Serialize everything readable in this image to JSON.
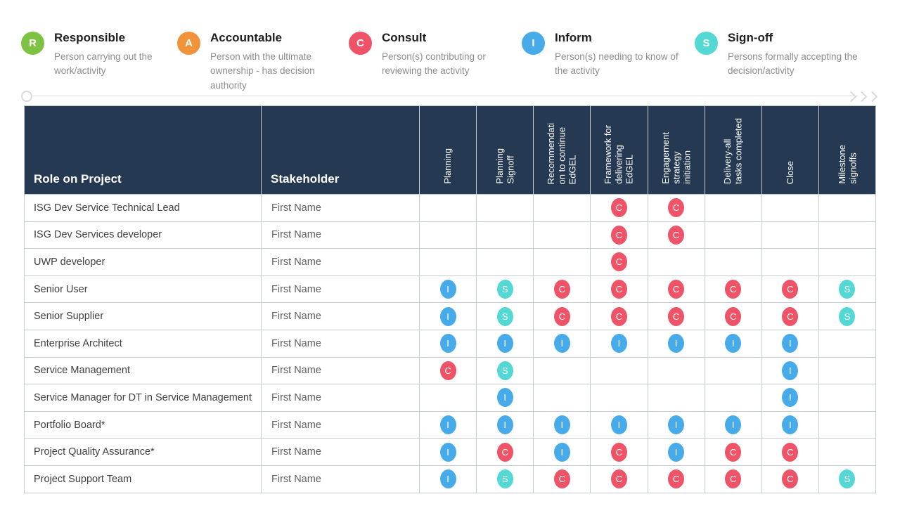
{
  "colors": {
    "header_bg": "#253a52",
    "responsible": "#7dc242",
    "accountable": "#f0933a",
    "consult": "#ef5368",
    "inform": "#47abea",
    "signoff": "#54d8d4"
  },
  "icons": {
    "timeline_end": "triple-chevron-right-icon",
    "timeline_start": "circle-marker-icon"
  },
  "legend": {
    "items": [
      {
        "letter": "R",
        "title": "Responsible",
        "description": "Person carrying out the work/activity",
        "color": "#7dc242"
      },
      {
        "letter": "A",
        "title": "Accountable",
        "description": "Person with the ultimate ownership - has decision authority",
        "color": "#f0933a"
      },
      {
        "letter": "C",
        "title": "Consult",
        "description": "Person(s) contributing or reviewing the activity",
        "color": "#ef5368"
      },
      {
        "letter": "I",
        "title": "Inform",
        "description": "Person(s) needing to know of the activity",
        "color": "#47abea"
      },
      {
        "letter": "S",
        "title": "Sign-off",
        "description": "Persons formally accepting the decision/activity",
        "color": "#54d8d4"
      }
    ]
  },
  "table": {
    "role_header": "Role on Project",
    "stakeholder_header": "Stakeholder",
    "activity_headers": [
      {
        "label": "Planning",
        "lines": "Planning"
      },
      {
        "label": "Planning Signoff",
        "lines": "Planning\nSignoff"
      },
      {
        "label": "Recommendation to continue EdGEL",
        "lines": "Recommendati\non to continue\nEdGEL"
      },
      {
        "label": "Framework for delivering EdGEL",
        "lines": "Framework for\ndelivering\nEdGEL"
      },
      {
        "label": "Engagement strategy initiation",
        "lines": "Engagement\nstrategy\ninitiation"
      },
      {
        "label": "Delivery-all tasks completed",
        "lines": "Delivery-all\ntasks completed"
      },
      {
        "label": "Close",
        "lines": "Close"
      },
      {
        "label": "Milestone signoffs",
        "lines": "Milestone\nsignoffs"
      }
    ],
    "rows": [
      {
        "role": "ISG Dev Service Technical Lead",
        "stakeholder": "First Name",
        "marks": [
          "",
          "",
          "",
          "C",
          "C",
          "",
          "",
          ""
        ]
      },
      {
        "role": "ISG Dev Services developer",
        "stakeholder": "First Name",
        "marks": [
          "",
          "",
          "",
          "C",
          "C",
          "",
          "",
          ""
        ]
      },
      {
        "role": "UWP developer",
        "stakeholder": "First Name",
        "marks": [
          "",
          "",
          "",
          "C",
          "",
          "",
          "",
          ""
        ]
      },
      {
        "role": "Senior User",
        "stakeholder": "First Name",
        "marks": [
          "I",
          "S",
          "C",
          "C",
          "C",
          "C",
          "C",
          "S"
        ]
      },
      {
        "role": "Senior Supplier",
        "stakeholder": "First Name",
        "marks": [
          "I",
          "S",
          "C",
          "C",
          "C",
          "C",
          "C",
          "S"
        ]
      },
      {
        "role": "Enterprise Architect",
        "stakeholder": "First Name",
        "marks": [
          "I",
          "I",
          "I",
          "I",
          "I",
          "I",
          "I",
          ""
        ]
      },
      {
        "role": "Service Management",
        "stakeholder": "First Name",
        "marks": [
          "C",
          "S",
          "",
          "",
          "",
          "",
          "I",
          ""
        ]
      },
      {
        "role": "Service Manager for DT in Service Management",
        "stakeholder": "First Name",
        "marks": [
          "",
          "I",
          "",
          "",
          "",
          "",
          "I",
          ""
        ]
      },
      {
        "role": "Portfolio Board*",
        "stakeholder": "First Name",
        "marks": [
          "I",
          "I",
          "I",
          "I",
          "I",
          "I",
          "I",
          ""
        ]
      },
      {
        "role": "Project Quality Assurance*",
        "stakeholder": "First Name",
        "marks": [
          "I",
          "C",
          "I",
          "C",
          "I",
          "C",
          "C",
          ""
        ]
      },
      {
        "role": "Project Support Team",
        "stakeholder": "First Name",
        "marks": [
          "I",
          "S",
          "C",
          "C",
          "C",
          "C",
          "C",
          "S"
        ]
      }
    ]
  }
}
